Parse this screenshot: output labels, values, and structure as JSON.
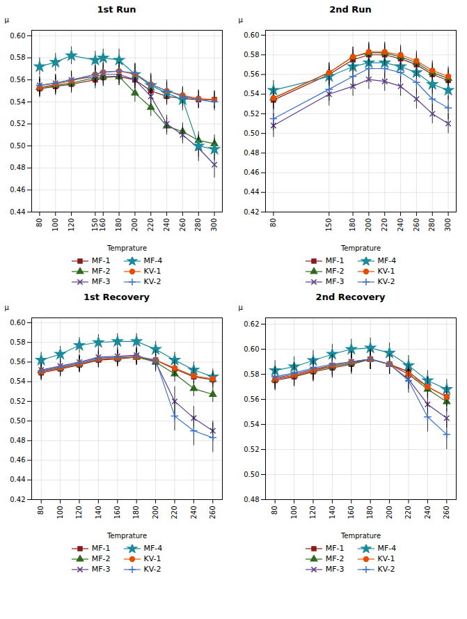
{
  "chart_data": [
    {
      "type": "line",
      "title": "1st Run",
      "xlabel": "Temprature",
      "ylabel": "μ",
      "grid": true,
      "legend": "bottom",
      "x": [
        80,
        100,
        120,
        150,
        160,
        180,
        200,
        220,
        240,
        260,
        280,
        300
      ],
      "xlim": [
        70,
        310
      ],
      "xticks": [
        80,
        100,
        120,
        150,
        160,
        180,
        200,
        220,
        240,
        260,
        280,
        300
      ],
      "ylim": [
        0.44,
        0.605
      ],
      "yticks": [
        0.44,
        0.46,
        0.48,
        {
          "value": 0.5,
          "label": "0.50"
        },
        0.52,
        0.54,
        0.56,
        0.58,
        {
          "value": 0.6,
          "label": "0.60"
        }
      ],
      "series": [
        {
          "name": "MF-1",
          "color": "#8B1A1A",
          "marker": "square",
          "values": [
            0.552,
            0.554,
            0.556,
            0.56,
            0.562,
            0.563,
            0.56,
            0.55,
            0.545,
            0.543,
            0.542,
            0.542
          ],
          "yerr": [
            0.008,
            0.008,
            0.008,
            0.008,
            0.008,
            0.008,
            0.008,
            0.008,
            0.008,
            0.008,
            0.008,
            0.008
          ]
        },
        {
          "name": "MF-2",
          "color": "#2E6B1E",
          "marker": "triangle",
          "values": [
            0.553,
            0.555,
            0.557,
            0.562,
            0.563,
            0.563,
            0.548,
            0.535,
            0.518,
            0.513,
            0.505,
            0.502
          ],
          "yerr": [
            0.008,
            0.008,
            0.008,
            0.008,
            0.008,
            0.008,
            0.008,
            0.008,
            0.008,
            0.008,
            0.008,
            0.008
          ]
        },
        {
          "name": "MF-3",
          "color": "#5B3A8E",
          "marker": "x",
          "values": [
            0.555,
            0.557,
            0.56,
            0.563,
            0.565,
            0.565,
            0.56,
            0.545,
            0.52,
            0.51,
            0.498,
            0.483
          ],
          "yerr": [
            0.008,
            0.008,
            0.008,
            0.008,
            0.008,
            0.008,
            0.008,
            0.008,
            0.008,
            0.008,
            0.012,
            0.012
          ]
        },
        {
          "name": "MF-4",
          "color": "#1A8B9B",
          "marker": "star",
          "values": [
            0.572,
            0.576,
            0.582,
            0.578,
            0.58,
            0.578,
            0.565,
            0.555,
            0.548,
            0.542,
            0.5,
            0.497
          ],
          "yerr": [
            0.008,
            0.008,
            0.008,
            0.008,
            0.008,
            0.01,
            0.01,
            0.01,
            0.01,
            0.01,
            0.01,
            0.01
          ]
        },
        {
          "name": "KV-1",
          "color": "#E84C00",
          "marker": "circle",
          "values": [
            0.553,
            0.556,
            0.559,
            0.565,
            0.567,
            0.568,
            0.565,
            0.556,
            0.55,
            0.546,
            0.543,
            0.542
          ],
          "yerr": [
            0.008,
            0.008,
            0.008,
            0.008,
            0.008,
            0.008,
            0.01,
            0.01,
            0.01,
            0.008,
            0.008,
            0.008
          ]
        },
        {
          "name": "KV-2",
          "color": "#3A72C8",
          "marker": "plus",
          "values": [
            0.555,
            0.557,
            0.56,
            0.565,
            0.567,
            0.568,
            0.566,
            0.556,
            0.55,
            0.545,
            0.542,
            0.54
          ],
          "yerr": [
            0.008,
            0.008,
            0.008,
            0.008,
            0.008,
            0.008,
            0.008,
            0.008,
            0.008,
            0.008,
            0.008,
            0.008
          ]
        }
      ]
    },
    {
      "type": "line",
      "title": "2nd Run",
      "xlabel": "Temprature",
      "ylabel": "μ",
      "grid": true,
      "legend": "bottom",
      "x": [
        80,
        150,
        180,
        200,
        220,
        240,
        260,
        280,
        300
      ],
      "xlim": [
        70,
        310
      ],
      "xticks": [
        80,
        150,
        180,
        200,
        220,
        240,
        260,
        280,
        300
      ],
      "ylim": [
        0.42,
        0.605
      ],
      "yticks": [
        0.42,
        0.44,
        0.46,
        0.48,
        {
          "value": 0.5,
          "label": "0.50"
        },
        0.52,
        0.54,
        0.56,
        0.58,
        {
          "value": 0.6,
          "label": "0.60"
        }
      ],
      "series": [
        {
          "name": "MF-1",
          "color": "#8B1A1A",
          "marker": "square",
          "values": [
            0.534,
            0.56,
            0.575,
            0.58,
            0.58,
            0.576,
            0.57,
            0.56,
            0.554
          ],
          "yerr": [
            0.01,
            0.01,
            0.01,
            0.01,
            0.01,
            0.01,
            0.01,
            0.01,
            0.01
          ]
        },
        {
          "name": "MF-2",
          "color": "#2E6B1E",
          "marker": "triangle",
          "values": [
            0.536,
            0.562,
            0.578,
            0.582,
            0.582,
            0.578,
            0.572,
            0.562,
            0.556
          ],
          "yerr": [
            0.01,
            0.01,
            0.01,
            0.01,
            0.01,
            0.01,
            0.01,
            0.01,
            0.01
          ]
        },
        {
          "name": "MF-3",
          "color": "#5B3A8E",
          "marker": "x",
          "values": [
            0.508,
            0.54,
            0.548,
            0.555,
            0.553,
            0.548,
            0.535,
            0.52,
            0.51
          ],
          "yerr": [
            0.012,
            0.012,
            0.01,
            0.01,
            0.01,
            0.01,
            0.01,
            0.01,
            0.01
          ]
        },
        {
          "name": "MF-4",
          "color": "#1A8B9B",
          "marker": "star",
          "values": [
            0.544,
            0.558,
            0.568,
            0.572,
            0.572,
            0.568,
            0.562,
            0.55,
            0.544
          ],
          "yerr": [
            0.01,
            0.01,
            0.01,
            0.01,
            0.01,
            0.01,
            0.01,
            0.01,
            0.01
          ]
        },
        {
          "name": "KV-1",
          "color": "#E84C00",
          "marker": "circle",
          "values": [
            0.536,
            0.562,
            0.578,
            0.583,
            0.583,
            0.58,
            0.574,
            0.564,
            0.558
          ],
          "yerr": [
            0.01,
            0.01,
            0.01,
            0.01,
            0.01,
            0.01,
            0.01,
            0.01,
            0.01
          ]
        },
        {
          "name": "KV-2",
          "color": "#3A72C8",
          "marker": "plus",
          "values": [
            0.515,
            0.545,
            0.558,
            0.566,
            0.566,
            0.562,
            0.552,
            0.535,
            0.526
          ],
          "yerr": [
            0.012,
            0.012,
            0.01,
            0.01,
            0.01,
            0.01,
            0.012,
            0.012,
            0.012
          ]
        }
      ]
    },
    {
      "type": "line",
      "title": "1st Recovery",
      "xlabel": "Temprature",
      "ylabel": "μ",
      "grid": true,
      "legend": "bottom",
      "x": [
        80,
        100,
        120,
        140,
        160,
        180,
        200,
        220,
        240,
        260
      ],
      "xlim": [
        70,
        270
      ],
      "xticks": [
        80,
        100,
        120,
        140,
        160,
        180,
        200,
        220,
        240,
        260
      ],
      "ylim": [
        0.42,
        0.605
      ],
      "yticks": [
        0.42,
        0.44,
        0.46,
        0.48,
        {
          "value": 0.5,
          "label": "0.50"
        },
        0.52,
        0.54,
        0.56,
        0.58,
        {
          "value": 0.6,
          "label": "0.60"
        }
      ],
      "series": [
        {
          "name": "MF-1",
          "color": "#8B1A1A",
          "marker": "square",
          "values": [
            0.549,
            0.553,
            0.557,
            0.562,
            0.563,
            0.565,
            0.562,
            0.553,
            0.545,
            0.542
          ],
          "yerr": [
            0.008,
            0.008,
            0.008,
            0.008,
            0.008,
            0.008,
            0.008,
            0.008,
            0.008,
            0.008
          ]
        },
        {
          "name": "MF-2",
          "color": "#2E6B1E",
          "marker": "triangle",
          "values": [
            0.551,
            0.554,
            0.558,
            0.563,
            0.564,
            0.565,
            0.56,
            0.548,
            0.533,
            0.527
          ],
          "yerr": [
            0.008,
            0.008,
            0.008,
            0.008,
            0.008,
            0.008,
            0.008,
            0.008,
            0.008,
            0.008
          ]
        },
        {
          "name": "MF-3",
          "color": "#5B3A8E",
          "marker": "x",
          "values": [
            0.552,
            0.556,
            0.56,
            0.565,
            0.566,
            0.567,
            0.56,
            0.52,
            0.503,
            0.49
          ],
          "yerr": [
            0.008,
            0.008,
            0.008,
            0.008,
            0.008,
            0.008,
            0.01,
            0.015,
            0.012,
            0.01
          ]
        },
        {
          "name": "MF-4",
          "color": "#1A8B9B",
          "marker": "star",
          "values": [
            0.562,
            0.568,
            0.577,
            0.58,
            0.581,
            0.581,
            0.573,
            0.562,
            0.552,
            0.545
          ],
          "yerr": [
            0.008,
            0.008,
            0.008,
            0.008,
            0.008,
            0.008,
            0.008,
            0.008,
            0.008,
            0.008
          ]
        },
        {
          "name": "KV-1",
          "color": "#E84C00",
          "marker": "circle",
          "values": [
            0.55,
            0.554,
            0.558,
            0.563,
            0.564,
            0.565,
            0.562,
            0.554,
            0.546,
            0.543
          ],
          "yerr": [
            0.008,
            0.008,
            0.008,
            0.008,
            0.008,
            0.008,
            0.008,
            0.008,
            0.008,
            0.008
          ]
        },
        {
          "name": "KV-2",
          "color": "#3A72C8",
          "marker": "plus",
          "values": [
            0.551,
            0.555,
            0.559,
            0.564,
            0.565,
            0.566,
            0.562,
            0.505,
            0.49,
            0.483
          ],
          "yerr": [
            0.008,
            0.008,
            0.008,
            0.008,
            0.008,
            0.008,
            0.01,
            0.015,
            0.015,
            0.015
          ]
        }
      ]
    },
    {
      "type": "line",
      "title": "2nd Recovery",
      "xlabel": "Temprature",
      "ylabel": "μ",
      "grid": true,
      "legend": "bottom",
      "x": [
        80,
        100,
        120,
        140,
        160,
        180,
        200,
        220,
        240,
        260
      ],
      "xlim": [
        70,
        270
      ],
      "xticks": [
        80,
        100,
        120,
        140,
        160,
        180,
        200,
        220,
        240,
        260
      ],
      "ylim": [
        0.48,
        0.625
      ],
      "yticks": [
        0.48,
        {
          "value": 0.5,
          "label": "0.50"
        },
        0.52,
        0.54,
        0.56,
        0.58,
        {
          "value": 0.6,
          "label": "0.60"
        },
        0.62
      ],
      "series": [
        {
          "name": "MF-1",
          "color": "#8B1A1A",
          "marker": "square",
          "values": [
            0.575,
            0.578,
            0.582,
            0.585,
            0.588,
            0.592,
            0.588,
            0.582,
            0.57,
            0.562
          ],
          "yerr": [
            0.008,
            0.008,
            0.008,
            0.008,
            0.008,
            0.008,
            0.008,
            0.008,
            0.008,
            0.008
          ]
        },
        {
          "name": "MF-2",
          "color": "#2E6B1E",
          "marker": "triangle",
          "values": [
            0.576,
            0.579,
            0.583,
            0.586,
            0.589,
            0.592,
            0.588,
            0.58,
            0.568,
            0.558
          ],
          "yerr": [
            0.008,
            0.008,
            0.008,
            0.008,
            0.008,
            0.008,
            0.008,
            0.008,
            0.008,
            0.008
          ]
        },
        {
          "name": "MF-3",
          "color": "#5B3A8E",
          "marker": "x",
          "values": [
            0.577,
            0.58,
            0.584,
            0.587,
            0.59,
            0.592,
            0.588,
            0.576,
            0.556,
            0.545
          ],
          "yerr": [
            0.008,
            0.008,
            0.008,
            0.008,
            0.008,
            0.008,
            0.008,
            0.008,
            0.008,
            0.008
          ]
        },
        {
          "name": "MF-4",
          "color": "#1A8B9B",
          "marker": "star",
          "values": [
            0.583,
            0.586,
            0.591,
            0.596,
            0.6,
            0.601,
            0.597,
            0.587,
            0.575,
            0.568
          ],
          "yerr": [
            0.008,
            0.008,
            0.008,
            0.008,
            0.008,
            0.008,
            0.008,
            0.008,
            0.008,
            0.008
          ]
        },
        {
          "name": "KV-1",
          "color": "#E84C00",
          "marker": "circle",
          "values": [
            0.576,
            0.579,
            0.583,
            0.587,
            0.59,
            0.592,
            0.588,
            0.58,
            0.57,
            0.562
          ],
          "yerr": [
            0.008,
            0.008,
            0.008,
            0.008,
            0.008,
            0.008,
            0.008,
            0.008,
            0.008,
            0.008
          ]
        },
        {
          "name": "KV-2",
          "color": "#3A72C8",
          "marker": "plus",
          "values": [
            0.578,
            0.581,
            0.585,
            0.588,
            0.59,
            0.592,
            0.588,
            0.575,
            0.546,
            0.532
          ],
          "yerr": [
            0.008,
            0.008,
            0.008,
            0.008,
            0.008,
            0.008,
            0.008,
            0.01,
            0.012,
            0.012
          ]
        }
      ]
    }
  ]
}
